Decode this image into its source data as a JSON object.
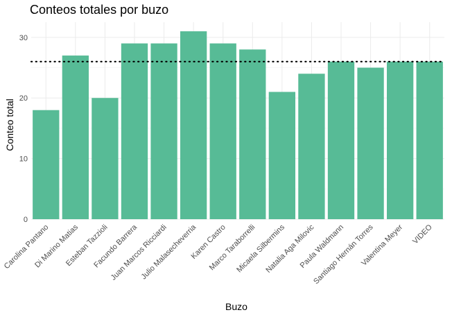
{
  "chart_data": {
    "type": "bar",
    "title": "Conteos totales por buzo",
    "xlabel": "Buzo",
    "ylabel": "Conteo total",
    "categories": [
      "Carolina Pantano",
      "Di Marino Matias",
      "Esteban Tazzioli",
      "Facundo Barrera",
      "Juan Marcos Ricciardi",
      "Julio Malasecheverria",
      "Karen Castro",
      "Marco Taraborrelli",
      "Micaela Silbermins",
      "Natalia Aga Milovic",
      "Paula Waldmann",
      "Santiago Hernán Torres",
      "Valentina Meyer",
      "VIDEO"
    ],
    "values": [
      18,
      27,
      20,
      29,
      29,
      31,
      29,
      28,
      21,
      24,
      26,
      25,
      26,
      26
    ],
    "ylim": [
      0,
      32.5
    ],
    "yticks": [
      0,
      10,
      20,
      30
    ],
    "reference_line": {
      "value": 26,
      "style": "dotted"
    },
    "bar_color": "#57bb96",
    "grid": true
  }
}
